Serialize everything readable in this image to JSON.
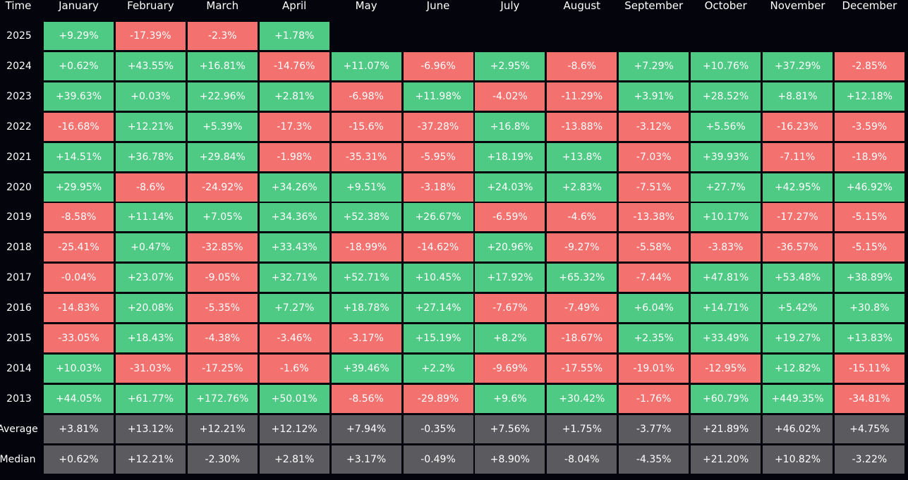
{
  "chart_data": {
    "type": "table",
    "corner_label": "Time",
    "columns": [
      "January",
      "February",
      "March",
      "April",
      "May",
      "June",
      "July",
      "August",
      "September",
      "October",
      "November",
      "December"
    ],
    "colors": {
      "positive": "#4fca84",
      "negative": "#f3716f",
      "summary": "#5b5b5f",
      "background": "#04040c"
    },
    "rows": [
      {
        "label": "2025",
        "values": [
          "+9.29%",
          "-17.39%",
          "-2.3%",
          "+1.78%",
          "",
          "",
          "",
          "",
          "",
          "",
          "",
          ""
        ]
      },
      {
        "label": "2024",
        "values": [
          "+0.62%",
          "+43.55%",
          "+16.81%",
          "-14.76%",
          "+11.07%",
          "-6.96%",
          "+2.95%",
          "-8.6%",
          "+7.29%",
          "+10.76%",
          "+37.29%",
          "-2.85%"
        ]
      },
      {
        "label": "2023",
        "values": [
          "+39.63%",
          "+0.03%",
          "+22.96%",
          "+2.81%",
          "-6.98%",
          "+11.98%",
          "-4.02%",
          "-11.29%",
          "+3.91%",
          "+28.52%",
          "+8.81%",
          "+12.18%"
        ]
      },
      {
        "label": "2022",
        "values": [
          "-16.68%",
          "+12.21%",
          "+5.39%",
          "-17.3%",
          "-15.6%",
          "-37.28%",
          "+16.8%",
          "-13.88%",
          "-3.12%",
          "+5.56%",
          "-16.23%",
          "-3.59%"
        ]
      },
      {
        "label": "2021",
        "values": [
          "+14.51%",
          "+36.78%",
          "+29.84%",
          "-1.98%",
          "-35.31%",
          "-5.95%",
          "+18.19%",
          "+13.8%",
          "-7.03%",
          "+39.93%",
          "-7.11%",
          "-18.9%"
        ]
      },
      {
        "label": "2020",
        "values": [
          "+29.95%",
          "-8.6%",
          "-24.92%",
          "+34.26%",
          "+9.51%",
          "-3.18%",
          "+24.03%",
          "+2.83%",
          "-7.51%",
          "+27.7%",
          "+42.95%",
          "+46.92%"
        ]
      },
      {
        "label": "2019",
        "values": [
          "-8.58%",
          "+11.14%",
          "+7.05%",
          "+34.36%",
          "+52.38%",
          "+26.67%",
          "-6.59%",
          "-4.6%",
          "-13.38%",
          "+10.17%",
          "-17.27%",
          "-5.15%"
        ]
      },
      {
        "label": "2018",
        "values": [
          "-25.41%",
          "+0.47%",
          "-32.85%",
          "+33.43%",
          "-18.99%",
          "-14.62%",
          "+20.96%",
          "-9.27%",
          "-5.58%",
          "-3.83%",
          "-36.57%",
          "-5.15%"
        ]
      },
      {
        "label": "2017",
        "values": [
          "-0.04%",
          "+23.07%",
          "-9.05%",
          "+32.71%",
          "+52.71%",
          "+10.45%",
          "+17.92%",
          "+65.32%",
          "-7.44%",
          "+47.81%",
          "+53.48%",
          "+38.89%"
        ]
      },
      {
        "label": "2016",
        "values": [
          "-14.83%",
          "+20.08%",
          "-5.35%",
          "+7.27%",
          "+18.78%",
          "+27.14%",
          "-7.67%",
          "-7.49%",
          "+6.04%",
          "+14.71%",
          "+5.42%",
          "+30.8%"
        ]
      },
      {
        "label": "2015",
        "values": [
          "-33.05%",
          "+18.43%",
          "-4.38%",
          "-3.46%",
          "-3.17%",
          "+15.19%",
          "+8.2%",
          "-18.67%",
          "+2.35%",
          "+33.49%",
          "+19.27%",
          "+13.83%"
        ]
      },
      {
        "label": "2014",
        "values": [
          "+10.03%",
          "-31.03%",
          "-17.25%",
          "-1.6%",
          "+39.46%",
          "+2.2%",
          "-9.69%",
          "-17.55%",
          "-19.01%",
          "-12.95%",
          "+12.82%",
          "-15.11%"
        ]
      },
      {
        "label": "2013",
        "values": [
          "+44.05%",
          "+61.77%",
          "+172.76%",
          "+50.01%",
          "-8.56%",
          "-29.89%",
          "+9.6%",
          "+30.42%",
          "-1.76%",
          "+60.79%",
          "+449.35%",
          "-34.81%"
        ]
      }
    ],
    "summary_rows": [
      {
        "label": "Average",
        "values": [
          "+3.81%",
          "+13.12%",
          "+12.21%",
          "+12.12%",
          "+7.94%",
          "-0.35%",
          "+7.56%",
          "+1.75%",
          "-3.77%",
          "+21.89%",
          "+46.02%",
          "+4.75%"
        ]
      },
      {
        "label": "Median",
        "values": [
          "+0.62%",
          "+12.21%",
          "-2.30%",
          "+2.81%",
          "+3.17%",
          "-0.49%",
          "+8.90%",
          "-8.04%",
          "-4.35%",
          "+21.20%",
          "+10.82%",
          "-3.22%"
        ]
      }
    ]
  }
}
